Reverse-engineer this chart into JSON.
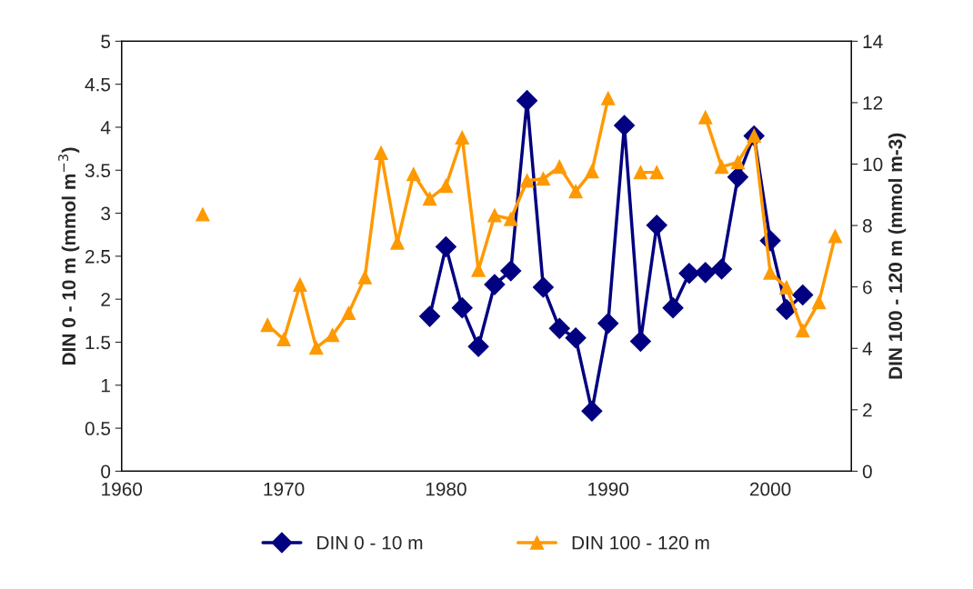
{
  "chart_data": {
    "type": "line",
    "xlabel": null,
    "ylabel": "DIN 0 - 10 m (mmol m$^{−3}$)",
    "y2label": "DIN 100 - 120 m (mmol m-3)",
    "xlim": [
      1960,
      2005
    ],
    "xticks": [
      1960,
      1970,
      1980,
      1990,
      2000
    ],
    "ylim": [
      0,
      5
    ],
    "yticks": [
      0,
      0.5,
      1,
      1.5,
      2,
      2.5,
      3,
      3.5,
      4,
      4.5,
      5
    ],
    "y2lim": [
      0,
      14
    ],
    "y2ticks": [
      0,
      2,
      4,
      6,
      8,
      10,
      12,
      14
    ],
    "grid": false,
    "legend": "bottom",
    "line_style": "solid",
    "series": [
      {
        "name": "DIN 0 - 10 m",
        "color": "#000080",
        "marker": "diamond",
        "x": [
          1979,
          1980,
          1981,
          1982,
          1983,
          1984,
          1985,
          1986,
          1987,
          1988,
          1989,
          1990,
          1991,
          1992,
          1993,
          1994,
          1995,
          1996,
          1997,
          1998,
          1999,
          2000,
          2001,
          2002
        ],
        "values": [
          1.8,
          2.61,
          1.9,
          1.45,
          2.17,
          2.33,
          4.31,
          2.14,
          1.66,
          1.55,
          0.7,
          1.72,
          4.02,
          1.51,
          2.86,
          1.9,
          2.3,
          2.31,
          2.35,
          3.42,
          3.9,
          2.68,
          1.88,
          2.05
        ]
      },
      {
        "name": "DIN 100 - 120 m",
        "color": "#ff9900",
        "marker": "triangle",
        "axis": "y2",
        "x": [
          1965,
          1966,
          1967,
          1968,
          1969,
          1970,
          1971,
          1972,
          1973,
          1974,
          1975,
          1976,
          1977,
          1978,
          1979,
          1980,
          1981,
          1982,
          1983,
          1984,
          1985,
          1986,
          1987,
          1988,
          1989,
          1990,
          1991,
          1992,
          1993,
          1994,
          1995,
          1996,
          1997,
          1998,
          1999,
          2000,
          2001,
          2002,
          2003,
          2004
        ],
        "values": [
          8.36,
          null,
          null,
          null,
          4.76,
          4.29,
          6.07,
          4.02,
          4.43,
          5.15,
          6.31,
          10.36,
          7.44,
          9.67,
          8.87,
          9.29,
          10.86,
          6.55,
          8.33,
          8.21,
          9.46,
          9.52,
          9.91,
          9.11,
          9.76,
          12.14,
          null,
          9.73,
          9.73,
          null,
          null,
          11.52,
          9.91,
          10.06,
          10.92,
          6.46,
          5.98,
          4.58,
          5.5,
          7.65
        ]
      }
    ]
  }
}
